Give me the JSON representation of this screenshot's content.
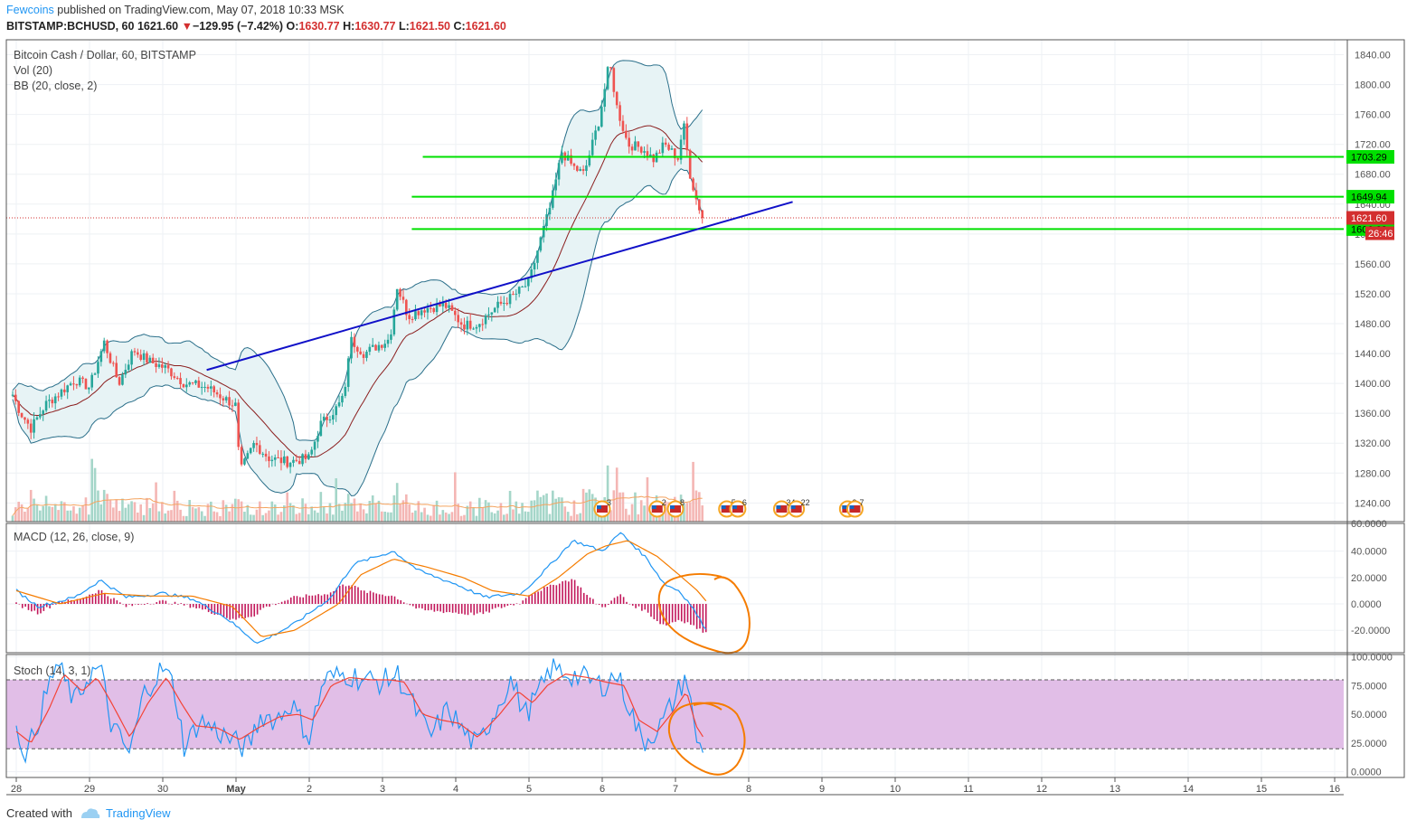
{
  "header": {
    "publisher": "Fewcoins",
    "published_text": " published on TradingView.com, May 07, 2018 10:33 MSK",
    "symbol_line": "BITSTAMP:BCHUSD, 60",
    "last_price": "1621.60",
    "change_arrow": "▼",
    "change": "−129.95 (−7.42%)",
    "open_label": "O:",
    "open": "1630.77",
    "high_label": "H:",
    "high": "1630.77",
    "low_label": "L:",
    "low": "1621.50",
    "close_label": "C:",
    "close": "1621.60"
  },
  "footer": {
    "created_with": "Created with",
    "brand": "TradingView"
  },
  "colors": {
    "up": "#26a69a",
    "down": "#ef5350",
    "bb_band": "#2a6f8a",
    "bb_fill": "#e7f3f5",
    "bb_basis": "#8b1e1e",
    "level": "#00e000",
    "trend": "#1010c8",
    "macd": "#2196f3",
    "signal": "#f57c00",
    "hist": "#c2185b",
    "stoch_k": "#2196f3",
    "stoch_d": "#f44336",
    "stoch_band": "#e1bee7",
    "annotation": "#f57c00",
    "price_line": "#d32f2f"
  },
  "chart_data": [
    {
      "type": "candlestick",
      "title": "Bitcoin Cash / Dollar, 60, BITSTAMP",
      "indicators": [
        "Vol (20)",
        "BB (20, close, 2)"
      ],
      "x_tick_labels": [
        "28",
        "29",
        "30",
        "May",
        "2",
        "3",
        "4",
        "5",
        "6",
        "7",
        "8",
        "9",
        "10",
        "11",
        "12",
        "13",
        "14",
        "15",
        "16"
      ],
      "y_ticks": [
        1240,
        1280,
        1320,
        1360,
        1400,
        1440,
        1480,
        1520,
        1560,
        1600,
        1640,
        1680,
        1720,
        1760,
        1800,
        1840
      ],
      "ylim": [
        1215,
        1860
      ],
      "horizontal_levels": [
        {
          "value": 1703.29,
          "label": "1703.29"
        },
        {
          "value": 1649.94,
          "label": "1649.94"
        },
        {
          "value": 1606.62,
          "label": "1606.62"
        }
      ],
      "last_price": {
        "value": 1621.6,
        "label": "1621.60"
      },
      "countdown": "26:46",
      "trend_line": {
        "start": {
          "day": 2.6,
          "price": 1418
        },
        "end": {
          "day": 10.6,
          "price": 1643
        }
      },
      "ohlc_keypoints_day_close": [
        [
          -0.05,
          1385
        ],
        [
          0.05,
          1362
        ],
        [
          0.2,
          1340
        ],
        [
          0.4,
          1372
        ],
        [
          0.6,
          1388
        ],
        [
          0.8,
          1405
        ],
        [
          1.0,
          1395
        ],
        [
          1.2,
          1455
        ],
        [
          1.4,
          1400
        ],
        [
          1.6,
          1445
        ],
        [
          1.8,
          1430
        ],
        [
          2.05,
          1420
        ],
        [
          2.3,
          1400
        ],
        [
          2.6,
          1395
        ],
        [
          3.0,
          1370
        ],
        [
          3.05,
          1280
        ],
        [
          3.25,
          1320
        ],
        [
          3.45,
          1300
        ],
        [
          3.7,
          1295
        ],
        [
          4.0,
          1300
        ],
        [
          4.15,
          1345
        ],
        [
          4.4,
          1370
        ],
        [
          4.5,
          1392
        ],
        [
          4.55,
          1460
        ],
        [
          4.75,
          1440
        ],
        [
          5.1,
          1460
        ],
        [
          5.2,
          1530
        ],
        [
          5.35,
          1490
        ],
        [
          5.55,
          1500
        ],
        [
          5.85,
          1505
        ],
        [
          6.1,
          1478
        ],
        [
          6.3,
          1480
        ],
        [
          6.55,
          1502
        ],
        [
          6.8,
          1518
        ],
        [
          7.0,
          1535
        ],
        [
          7.15,
          1590
        ],
        [
          7.3,
          1640
        ],
        [
          7.45,
          1710
        ],
        [
          7.6,
          1690
        ],
        [
          7.75,
          1680
        ],
        [
          7.95,
          1750
        ],
        [
          8.1,
          1830
        ],
        [
          8.2,
          1770
        ],
        [
          8.35,
          1720
        ],
        [
          8.55,
          1715
        ],
        [
          8.7,
          1700
        ],
        [
          8.85,
          1720
        ],
        [
          9.05,
          1700
        ],
        [
          9.1,
          1755
        ],
        [
          9.2,
          1680
        ],
        [
          9.3,
          1640
        ],
        [
          9.4,
          1621
        ]
      ]
    },
    {
      "type": "line",
      "title": "MACD (12, 26, close, 9)",
      "y_ticks": [
        40,
        20,
        0,
        -20
      ],
      "y_tick_labels": [
        "40.0000",
        "20.0000",
        "0.0000",
        "-20.0000"
      ],
      "ylim": [
        -37,
        61
      ],
      "top_label": "60.0000",
      "macd_keypoints": [
        [
          0,
          10
        ],
        [
          0.3,
          -2
        ],
        [
          0.8,
          5
        ],
        [
          1.15,
          18
        ],
        [
          1.5,
          5
        ],
        [
          2.0,
          8
        ],
        [
          2.4,
          4
        ],
        [
          2.85,
          -10
        ],
        [
          3.3,
          -30
        ],
        [
          3.8,
          -15
        ],
        [
          4.3,
          5
        ],
        [
          4.6,
          30
        ],
        [
          5.15,
          40
        ],
        [
          5.5,
          25
        ],
        [
          6.0,
          15
        ],
        [
          6.4,
          5
        ],
        [
          6.9,
          8
        ],
        [
          7.3,
          30
        ],
        [
          7.6,
          48
        ],
        [
          8.0,
          40
        ],
        [
          8.25,
          54
        ],
        [
          8.6,
          35
        ],
        [
          8.85,
          15
        ],
        [
          9.05,
          10
        ],
        [
          9.2,
          0
        ],
        [
          9.4,
          -18
        ]
      ],
      "signal_keypoints": [
        [
          0,
          10
        ],
        [
          0.6,
          0
        ],
        [
          1.2,
          8
        ],
        [
          1.8,
          6
        ],
        [
          2.4,
          6
        ],
        [
          2.95,
          -2
        ],
        [
          3.35,
          -25
        ],
        [
          3.8,
          -20
        ],
        [
          4.4,
          0
        ],
        [
          4.7,
          22
        ],
        [
          5.15,
          34
        ],
        [
          5.6,
          28
        ],
        [
          6.1,
          20
        ],
        [
          6.5,
          10
        ],
        [
          7.0,
          6
        ],
        [
          7.4,
          20
        ],
        [
          7.8,
          38
        ],
        [
          8.05,
          44
        ],
        [
          8.35,
          48
        ],
        [
          8.75,
          36
        ],
        [
          9.05,
          22
        ],
        [
          9.3,
          10
        ],
        [
          9.45,
          0
        ]
      ]
    },
    {
      "type": "line",
      "title": "Stoch (14, 3, 1)",
      "y_ticks": [
        100,
        75,
        50,
        25,
        0
      ],
      "y_tick_labels": [
        "100.0000",
        "75.0000",
        "50.0000",
        "25.0000",
        "0.0000"
      ],
      "ylim": [
        -5,
        102
      ],
      "band": [
        20,
        80
      ],
      "k_keypoints": [
        [
          0,
          35
        ],
        [
          0.15,
          15
        ],
        [
          0.35,
          55
        ],
        [
          0.55,
          95
        ],
        [
          0.8,
          60
        ],
        [
          1.0,
          85
        ],
        [
          1.15,
          90
        ],
        [
          1.3,
          40
        ],
        [
          1.55,
          15
        ],
        [
          1.75,
          70
        ],
        [
          2.0,
          90
        ],
        [
          2.15,
          75
        ],
        [
          2.3,
          20
        ],
        [
          2.5,
          45
        ],
        [
          2.75,
          35
        ],
        [
          3.0,
          25
        ],
        [
          3.15,
          20
        ],
        [
          3.35,
          50
        ],
        [
          3.55,
          45
        ],
        [
          3.75,
          60
        ],
        [
          4.0,
          30
        ],
        [
          4.2,
          80
        ],
        [
          4.5,
          85
        ],
        [
          4.75,
          80
        ],
        [
          5.0,
          78
        ],
        [
          5.2,
          85
        ],
        [
          5.4,
          60
        ],
        [
          5.65,
          30
        ],
        [
          5.9,
          55
        ],
        [
          6.1,
          35
        ],
        [
          6.3,
          22
        ],
        [
          6.55,
          55
        ],
        [
          6.75,
          80
        ],
        [
          6.95,
          50
        ],
        [
          7.15,
          70
        ],
        [
          7.3,
          90
        ],
        [
          7.55,
          85
        ],
        [
          7.8,
          80
        ],
        [
          8.0,
          75
        ],
        [
          8.2,
          85
        ],
        [
          8.35,
          60
        ],
        [
          8.55,
          25
        ],
        [
          8.8,
          40
        ],
        [
          9.0,
          65
        ],
        [
          9.15,
          85
        ],
        [
          9.25,
          40
        ],
        [
          9.32,
          20
        ],
        [
          9.4,
          25
        ]
      ],
      "d_keypoints": [
        [
          0,
          35
        ],
        [
          0.2,
          25
        ],
        [
          0.45,
          55
        ],
        [
          0.65,
          85
        ],
        [
          0.9,
          70
        ],
        [
          1.1,
          82
        ],
        [
          1.3,
          60
        ],
        [
          1.55,
          30
        ],
        [
          1.8,
          60
        ],
        [
          2.05,
          82
        ],
        [
          2.25,
          60
        ],
        [
          2.45,
          40
        ],
        [
          2.75,
          38
        ],
        [
          3.05,
          28
        ],
        [
          3.3,
          38
        ],
        [
          3.6,
          48
        ],
        [
          3.85,
          50
        ],
        [
          4.05,
          45
        ],
        [
          4.3,
          75
        ],
        [
          4.55,
          82
        ],
        [
          4.85,
          80
        ],
        [
          5.1,
          80
        ],
        [
          5.3,
          78
        ],
        [
          5.55,
          50
        ],
        [
          5.8,
          45
        ],
        [
          6.05,
          42
        ],
        [
          6.3,
          30
        ],
        [
          6.6,
          50
        ],
        [
          6.85,
          70
        ],
        [
          7.05,
          60
        ],
        [
          7.25,
          75
        ],
        [
          7.5,
          85
        ],
        [
          7.8,
          82
        ],
        [
          8.05,
          78
        ],
        [
          8.3,
          75
        ],
        [
          8.5,
          45
        ],
        [
          8.75,
          35
        ],
        [
          9.0,
          55
        ],
        [
          9.15,
          70
        ],
        [
          9.28,
          40
        ],
        [
          9.4,
          28
        ]
      ]
    }
  ],
  "event_icons": [
    {
      "day": 8.0,
      "count": "3"
    },
    {
      "day": 8.75,
      "count": "2"
    },
    {
      "day": 9.0,
      "count": "8"
    },
    {
      "day": 9.7,
      "count": "5"
    },
    {
      "day": 9.85,
      "count": "6"
    },
    {
      "day": 10.45,
      "count": "34"
    },
    {
      "day": 10.65,
      "count": "22"
    },
    {
      "day": 11.35,
      "count": "2"
    },
    {
      "day": 11.45,
      "count": "7"
    }
  ]
}
